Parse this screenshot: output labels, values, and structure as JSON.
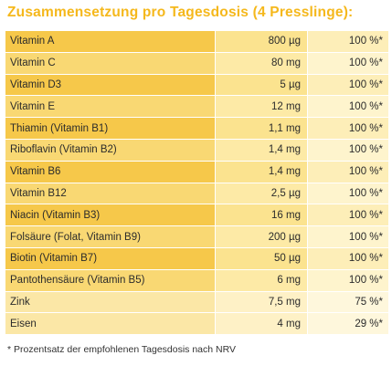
{
  "title": "Zusammensetzung pro Tagesdosis (4 Presslinge):",
  "rows": [
    {
      "name": "Vitamin A",
      "amount": "800 µg",
      "nrv": "100 %*"
    },
    {
      "name": "Vitamin C",
      "amount": "80 mg",
      "nrv": "100 %*"
    },
    {
      "name": "Vitamin D3",
      "amount": "5 µg",
      "nrv": "100 %*"
    },
    {
      "name": "Vitamin E",
      "amount": "12 mg",
      "nrv": "100 %*"
    },
    {
      "name": "Thiamin (Vitamin B1)",
      "amount": "1,1 mg",
      "nrv": "100 %*"
    },
    {
      "name": "Riboflavin (Vitamin B2)",
      "amount": "1,4 mg",
      "nrv": "100 %*"
    },
    {
      "name": "Vitamin B6",
      "amount": "1,4 mg",
      "nrv": "100 %*"
    },
    {
      "name": "Vitamin B12",
      "amount": "2,5 µg",
      "nrv": "100 %*"
    },
    {
      "name": "Niacin (Vitamin B3)",
      "amount": "16 mg",
      "nrv": "100 %*"
    },
    {
      "name": "Folsäure (Folat, Vitamin B9)",
      "amount": "200 µg",
      "nrv": "100 %*"
    },
    {
      "name": "Biotin (Vitamin B7)",
      "amount": "50 µg",
      "nrv": "100 %*"
    },
    {
      "name": "Pantothensäure (Vitamin B5)",
      "amount": "6 mg",
      "nrv": "100 %*"
    },
    {
      "name": "Zink",
      "amount": "7,5 mg",
      "nrv": "75 %*"
    },
    {
      "name": "Eisen",
      "amount": "4 mg",
      "nrv": "29 %*"
    }
  ],
  "footnote": "* Prozentsatz der empfohlenen Tagesdosis nach NRV",
  "colors": {
    "title": "#f5b81c",
    "name_cell_dark": "#f6c84a",
    "amount_cell_dark": "#fbe38f",
    "nrv_cell_dark": "#fdeeb8"
  }
}
